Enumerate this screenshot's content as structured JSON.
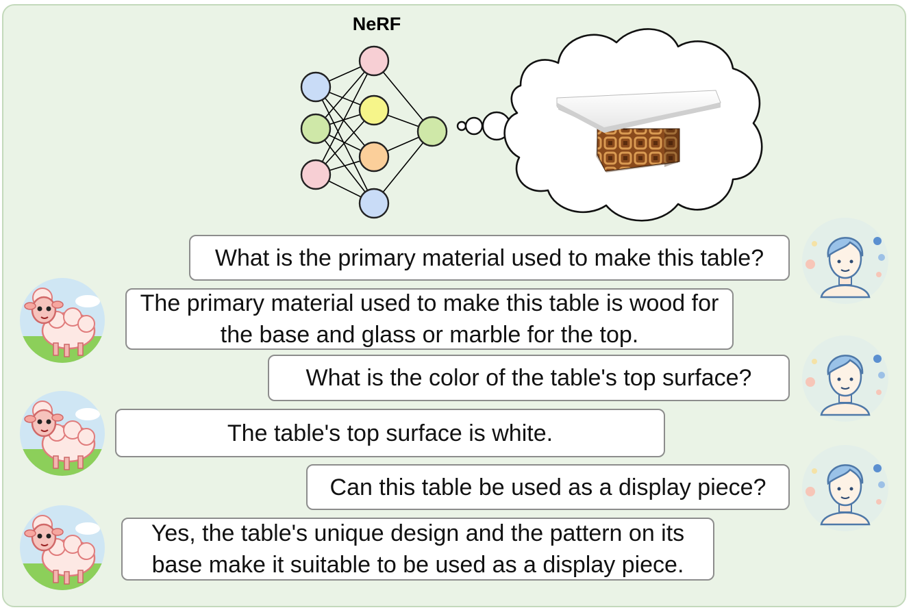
{
  "diagram": {
    "title": "NeRF",
    "colors": {
      "panel_bg": "#eaf3e6",
      "node_blue": "#c9dcf7",
      "node_green": "#cfe8a8",
      "node_pink": "#f7cfd4",
      "node_yellow": "#f6f58a",
      "node_orange": "#fbcf9a"
    }
  },
  "conversation": [
    {
      "speaker": "user",
      "icon": "person-avatar-icon",
      "text": "What is the primary material used to make this table?"
    },
    {
      "speaker": "assistant",
      "icon": "sheep-avatar-icon",
      "text": "The primary material used to make this table is wood for the base and glass or marble for the top."
    },
    {
      "speaker": "user",
      "icon": "person-avatar-icon",
      "text": "What is the color of the table's top surface?"
    },
    {
      "speaker": "assistant",
      "icon": "sheep-avatar-icon",
      "text": "The table's top surface is white."
    },
    {
      "speaker": "user",
      "icon": "person-avatar-icon",
      "text": "Can this table be used as a display piece?"
    },
    {
      "speaker": "assistant",
      "icon": "sheep-avatar-icon",
      "text": "Yes, the table's unique design and the pattern on its base make it suitable to be used as a display piece."
    }
  ]
}
